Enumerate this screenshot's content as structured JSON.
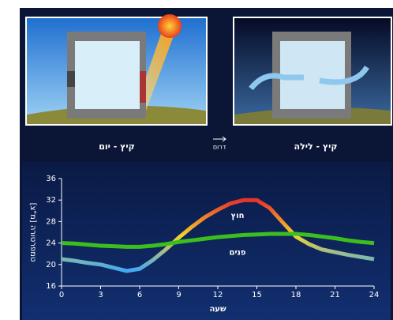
{
  "panels": [
    {
      "caption": "קיץ - יום"
    },
    {
      "caption": "קיץ - לילה"
    }
  ],
  "compass": "דרום",
  "chart_data": {
    "type": "line",
    "x": [
      0,
      1,
      2,
      3,
      4,
      5,
      6,
      7,
      8,
      9,
      10,
      11,
      12,
      13,
      14,
      15,
      16,
      17,
      18,
      19,
      20,
      21,
      22,
      23,
      24
    ],
    "series": [
      {
        "name": "חוץ",
        "gradient": [
          "#e8332a",
          "#f3d22b",
          "#3fa9f5"
        ],
        "values": [
          21,
          20.7,
          20.3,
          20,
          19.4,
          18.8,
          19.2,
          20.8,
          22.8,
          25,
          27,
          28.8,
          30.2,
          31.4,
          32,
          32,
          30.5,
          27.8,
          25.2,
          23.8,
          22.8,
          22.3,
          21.8,
          21.4,
          21
        ]
      },
      {
        "name": "פנים",
        "color": "#3cbf1e",
        "values": [
          24,
          23.9,
          23.7,
          23.5,
          23.4,
          23.3,
          23.3,
          23.5,
          23.8,
          24.2,
          24.5,
          24.8,
          25.1,
          25.3,
          25.5,
          25.6,
          25.7,
          25.7,
          25.7,
          25.5,
          25.2,
          24.9,
          24.5,
          24.2,
          24
        ]
      }
    ],
    "xlim": [
      0,
      24
    ],
    "xticks": [
      0,
      3,
      6,
      9,
      12,
      15,
      18,
      21,
      24
    ],
    "ylim": [
      16,
      36
    ],
    "yticks": [
      16,
      20,
      24,
      28,
      32,
      36
    ],
    "xlabel": "שעה",
    "ylabel": "טמפרטורה [מ\"צ]",
    "grid": false
  }
}
